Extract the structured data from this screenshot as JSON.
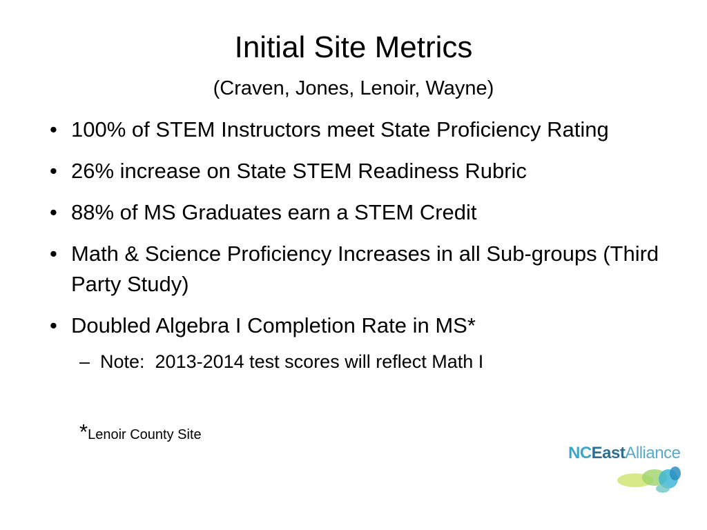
{
  "title": "Initial Site Metrics",
  "subtitle": "(Craven, Jones, Lenoir, Wayne)",
  "bullets": [
    "100% of STEM Instructors meet State Proficiency Rating",
    "26% increase on State STEM Readiness Rubric",
    "88% of MS Graduates earn a STEM Credit",
    "Math & Science Proficiency Increases in all Sub-groups (Third Party Study)",
    "Doubled Algebra I Completion Rate in MS*"
  ],
  "sub_bullets": [
    "Note:  2013-2014 test scores will reflect Math I"
  ],
  "footnote": {
    "mark": "*",
    "text": "Lenoir County Site"
  },
  "logo": {
    "nc": "NC",
    "east": "East",
    "alliance": "Alliance"
  }
}
